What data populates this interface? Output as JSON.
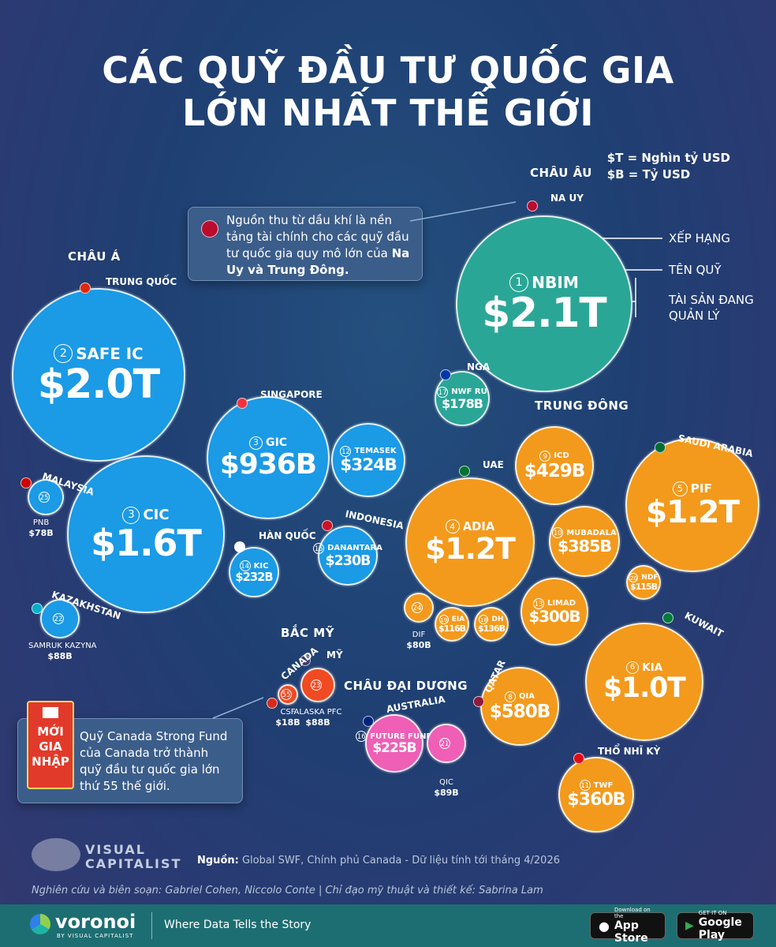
{
  "title": {
    "line1": "CÁC QUỸ ĐẦU TƯ QUỐC GIA",
    "line2": "LỚN NHẤT THẾ GIỚI"
  },
  "units": {
    "trillion": "$T = Nghìn tỷ USD",
    "billion": "$B = Tỷ USD"
  },
  "regions": {
    "europe": "CHÂU ÂU",
    "asia": "CHÂU Á",
    "middle_east": "TRUNG ĐÔNG",
    "north_america": "BẮC MỸ",
    "oceania": "CHÂU ĐẠI DƯƠNG"
  },
  "callout_oil": "Nguồn thu từ dầu khí là nền tảng tài chính cho các quỹ đầu tư quốc gia quy mô lớn của",
  "callout_oil_bold": "Na Uy và Trung Đông.",
  "annotations": {
    "rank": "XẾP HẠNG",
    "fund_name": "TÊN QUỸ",
    "aum_line1": "TÀI SẢN ĐANG",
    "aum_line2": "QUẢN LÝ"
  },
  "badge": {
    "line1": "MỚI",
    "line2": "GIA",
    "line3": "NHẬP"
  },
  "callout_new": "Quỹ Canada Strong Fund của Canada trở thành quỹ đầu tư quốc gia lớn thứ 55 thế giới.",
  "source_label": "Nguồn:",
  "source_text": "Global SWF, Chính phủ Canada - Dữ liệu tính tới tháng 4/2026",
  "credits": "Nghiên cứu và biên soạn: Gabriel Cohen, Niccolo Conte | Chỉ đạo mỹ thuật và thiết kế: Sabrina Lam",
  "brand": {
    "vc_line1": "VISUAL",
    "vc_line2": "CAPITALIST",
    "voronoi": "voronoi",
    "voronoi_sub": "BY VISUAL CAPITALIST",
    "tagline": "Where Data Tells the Story"
  },
  "stores": {
    "apple_small": "Download on the",
    "apple": "App Store",
    "google_small": "GET IT ON",
    "google": "Google Play"
  },
  "colors": {
    "europe": "#2aa697",
    "asia": "#1b9ae6",
    "middle_east": "#f39a1c",
    "north_america": "#f04a23",
    "oceania": "#ee5fb5"
  },
  "chart_data": {
    "type": "bubble",
    "unit": "USD billions",
    "series": [
      {
        "rank": 1,
        "fund": "NBIM",
        "country": "NA UY",
        "region": "europe",
        "value": 2100,
        "label": "$2.1T"
      },
      {
        "rank": 2,
        "fund": "SAFE IC",
        "country": "TRUNG QUỐC",
        "region": "asia",
        "value": 2000,
        "label": "$2.0T"
      },
      {
        "rank": 3,
        "fund": "CIC",
        "country": "TRUNG QUỐC",
        "region": "asia",
        "value": 1600,
        "label": "$1.6T"
      },
      {
        "rank": 3,
        "fund": "GIC",
        "country": "SINGAPORE",
        "region": "asia",
        "value": 936,
        "label": "$936B"
      },
      {
        "rank": 4,
        "fund": "ADIA",
        "country": "UAE",
        "region": "middle_east",
        "value": 1200,
        "label": "$1.2T"
      },
      {
        "rank": 5,
        "fund": "PIF",
        "country": "SAUDI ARABIA",
        "region": "middle_east",
        "value": 1200,
        "label": "$1.2T"
      },
      {
        "rank": 6,
        "fund": "KIA",
        "country": "KUWAIT",
        "region": "middle_east",
        "value": 1000,
        "label": "$1.0T"
      },
      {
        "rank": 8,
        "fund": "QIA",
        "country": "QATAR",
        "region": "middle_east",
        "value": 580,
        "label": "$580B"
      },
      {
        "rank": 9,
        "fund": "ICD",
        "country": "UAE",
        "region": "middle_east",
        "value": 429,
        "label": "$429B"
      },
      {
        "rank": 10,
        "fund": "MUBADALA",
        "country": "UAE",
        "region": "middle_east",
        "value": 385,
        "label": "$385B"
      },
      {
        "rank": 11,
        "fund": "TWF",
        "country": "THỔ NHĨ KỲ",
        "region": "middle_east",
        "value": 360,
        "label": "$360B"
      },
      {
        "rank": 12,
        "fund": "TEMASEK",
        "country": "SINGAPORE",
        "region": "asia",
        "value": 324,
        "label": "$324B"
      },
      {
        "rank": 13,
        "fund": "LIMAD",
        "country": "UAE",
        "region": "middle_east",
        "value": 300,
        "label": "$300B"
      },
      {
        "rank": 14,
        "fund": "KIC",
        "country": "HÀN QUỐC",
        "region": "asia",
        "value": 232,
        "label": "$232B"
      },
      {
        "rank": 15,
        "fund": "DANANTARA",
        "country": "INDONESIA",
        "region": "asia",
        "value": 230,
        "label": "$230B"
      },
      {
        "rank": 16,
        "fund": "FUTURE FUND",
        "country": "AUSTRALIA",
        "region": "oceania",
        "value": 225,
        "label": "$225B"
      },
      {
        "rank": 17,
        "fund": "NWF RU",
        "country": "NGA",
        "region": "europe",
        "value": 178,
        "label": "$178B"
      },
      {
        "rank": 18,
        "fund": "DH",
        "country": "UAE",
        "region": "middle_east",
        "value": 136,
        "label": "$136B"
      },
      {
        "rank": 19,
        "fund": "EIA",
        "country": "UAE",
        "region": "middle_east",
        "value": 116,
        "label": "$116B"
      },
      {
        "rank": 20,
        "fund": "NDF",
        "country": "SAUDI ARABIA",
        "region": "middle_east",
        "value": 115,
        "label": "$115B"
      },
      {
        "rank": 21,
        "fund": "QIC",
        "country": "AUSTRALIA",
        "region": "oceania",
        "value": 89,
        "label": "$89B"
      },
      {
        "rank": 22,
        "fund": "SAMRUK KAZYNA",
        "country": "KAZAKHSTAN",
        "region": "asia",
        "value": 88,
        "label": "$88B"
      },
      {
        "rank": 23,
        "fund": "ALASKA PFC",
        "country": "MỸ",
        "region": "north_america",
        "value": 88,
        "label": "$88B"
      },
      {
        "rank": 24,
        "fund": "DIF",
        "country": "UAE",
        "region": "middle_east",
        "value": 80,
        "label": "$80B"
      },
      {
        "rank": 25,
        "fund": "PNB",
        "country": "MALAYSIA",
        "region": "asia",
        "value": 78,
        "label": "$78B"
      },
      {
        "rank": 55,
        "fund": "CSF",
        "country": "CANADA",
        "region": "north_america",
        "value": 18,
        "label": "$18B"
      }
    ]
  }
}
